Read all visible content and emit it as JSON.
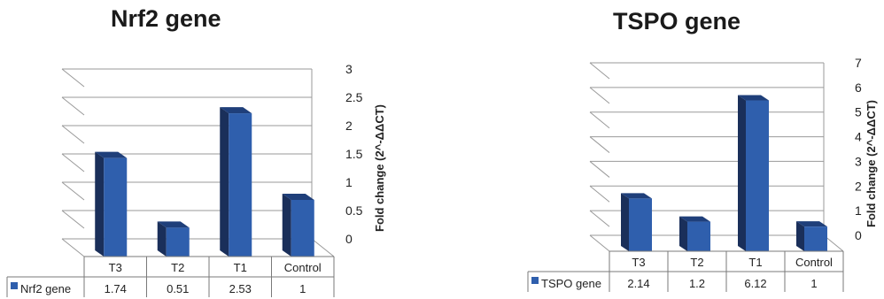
{
  "chart_data": [
    {
      "type": "bar",
      "title": "Nrf2 gene",
      "categories": [
        "T3",
        "T2",
        "T1",
        "Control"
      ],
      "series": [
        {
          "name": "Nrf2 gene",
          "values": [
            1.74,
            0.51,
            2.53,
            1
          ]
        }
      ],
      "ylabel": "Fold change (2^-ΔΔCT)",
      "ylim": [
        0,
        3
      ],
      "yticks": [
        "0",
        "0.5",
        "1",
        "1.5",
        "2",
        "2.5",
        "3"
      ],
      "data_table": true,
      "color": "#2f5fad"
    },
    {
      "type": "bar",
      "title": "TSPO gene",
      "categories": [
        "T3",
        "T2",
        "T1",
        "Control"
      ],
      "series": [
        {
          "name": "TSPO gene",
          "values": [
            2.14,
            1.2,
            6.12,
            1
          ]
        }
      ],
      "ylabel": "Fold change (2^-ΔΔCT)",
      "ylim": [
        0,
        7
      ],
      "yticks": [
        "0",
        "1",
        "2",
        "3",
        "4",
        "5",
        "6",
        "7"
      ],
      "data_table": true,
      "color": "#2f5fad"
    }
  ]
}
